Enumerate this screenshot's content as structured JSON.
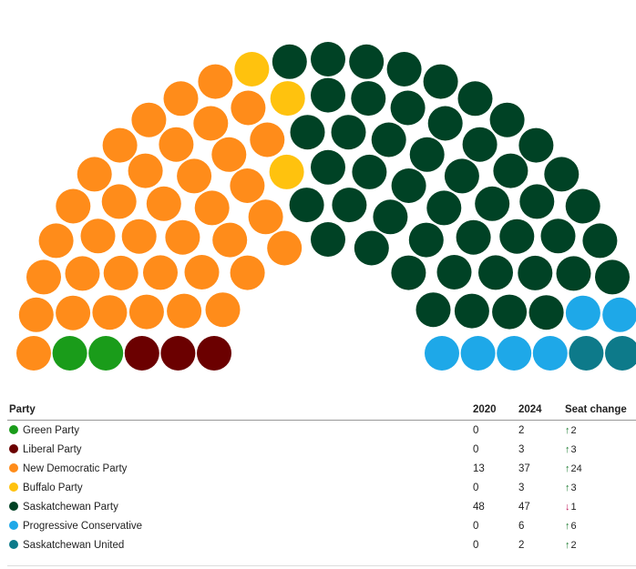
{
  "chart_data": {
    "type": "parliament",
    "total_seats": 100,
    "seat_order": [
      "Liberal Party",
      "Green Party",
      "New Democratic Party",
      "Buffalo Party",
      "Saskatchewan Party",
      "Progressive Conservative",
      "Saskatchewan United"
    ],
    "parties": [
      {
        "name": "Green Party",
        "color": "#1a9c1a",
        "seats_2020": 0,
        "seats_2024": 2,
        "change": 2,
        "direction": "up",
        "change_label": "2"
      },
      {
        "name": "Liberal Party",
        "color": "#6b0000",
        "seats_2020": 0,
        "seats_2024": 3,
        "change": 3,
        "direction": "up",
        "change_label": "3"
      },
      {
        "name": "New Democratic Party",
        "color": "#ff8c1a",
        "seats_2020": 13,
        "seats_2024": 37,
        "change": 24,
        "direction": "up",
        "change_label": "24"
      },
      {
        "name": "Buffalo Party",
        "color": "#ffc20e",
        "seats_2020": 0,
        "seats_2024": 3,
        "change": 3,
        "direction": "up",
        "change_label": "3"
      },
      {
        "name": "Saskatchewan Party",
        "color": "#004225",
        "seats_2020": 48,
        "seats_2024": 47,
        "change": -1,
        "direction": "down",
        "change_label": "1"
      },
      {
        "name": "Progressive Conservative",
        "color": "#1ea8e8",
        "seats_2020": 0,
        "seats_2024": 6,
        "change": 6,
        "direction": "up",
        "change_label": "6"
      },
      {
        "name": "Saskatchewan United",
        "color": "#0d7a8a",
        "seats_2020": 0,
        "seats_2024": 2,
        "change": 2,
        "direction": "up",
        "change_label": "2"
      }
    ]
  },
  "table": {
    "headers": {
      "party": "Party",
      "y2020": "2020",
      "y2024": "2024",
      "change": "Seat change"
    },
    "arrow_up": "↑",
    "arrow_down": "↓"
  }
}
